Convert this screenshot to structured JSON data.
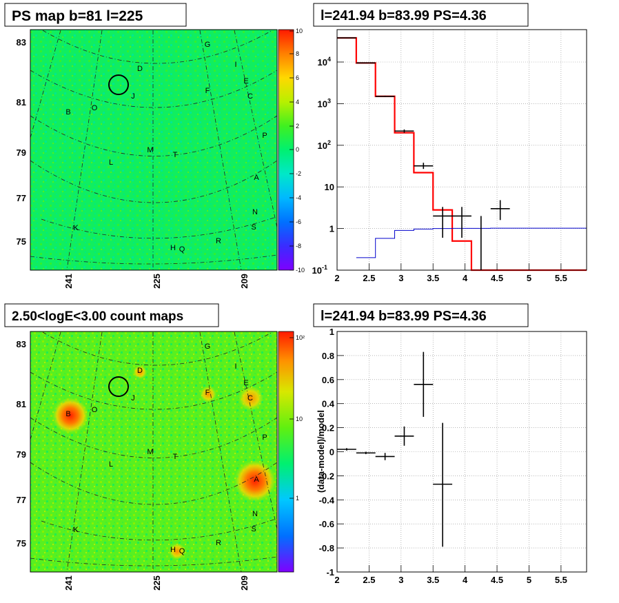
{
  "panels": {
    "ps_map": {
      "title": "PS map b=81 l=225",
      "y_ticks": [
        "83",
        "81",
        "79",
        "77",
        "75"
      ],
      "x_ticks": [
        "241",
        "225",
        "209"
      ],
      "colorbar_ticks": [
        "10",
        "8",
        "6",
        "4",
        "2",
        "0",
        "-2",
        "-4",
        "-6",
        "-8",
        "-10"
      ]
    },
    "count_map": {
      "title": "2.50<logE<3.00 count maps",
      "y_ticks": [
        "83",
        "81",
        "79",
        "77",
        "75"
      ],
      "x_ticks": [
        "241",
        "225",
        "209"
      ],
      "colorbar_ticks": [
        "10²",
        "10",
        "1"
      ]
    },
    "source_labels": [
      "G",
      "I",
      "D",
      "E",
      "J",
      "F",
      "C",
      "O",
      "B",
      "P",
      "M",
      "T",
      "L",
      "A",
      "N",
      "S",
      "K",
      "H",
      "Q",
      "R"
    ],
    "spectrum_title": "l=241.94 b=83.99 PS=4.36",
    "residual_title": "l=241.94 b=83.99 PS=4.36",
    "residual_ylabel": "(data-model)/model"
  },
  "colors": {
    "model_red": "#ff0000",
    "background_blue": "#0000cc",
    "data_black": "#000000"
  },
  "chart_data": [
    {
      "type": "line",
      "title": "l=241.94 b=83.99 PS=4.36",
      "xlim": [
        2,
        5.9
      ],
      "ylim": [
        0.1,
        60000
      ],
      "log_y": true,
      "grid": true,
      "x_ticks": [
        "2",
        "2.5",
        "3",
        "3.5",
        "4",
        "4.5",
        "5",
        "5.5"
      ],
      "y_ticks": [
        {
          "v": 10000,
          "base": "10",
          "exp": "4"
        },
        {
          "v": 1000,
          "base": "10",
          "exp": "3"
        },
        {
          "v": 100,
          "base": "10",
          "exp": "2"
        },
        {
          "v": 10,
          "base": "10",
          "exp": ""
        },
        {
          "v": 1,
          "base": "1",
          "exp": ""
        },
        {
          "v": 0.1,
          "base": "10",
          "exp": "-1"
        }
      ],
      "series": [
        {
          "role": "model",
          "color": "#ff0000",
          "edges": [
            2.0,
            2.3,
            2.6,
            2.9,
            3.2,
            3.5,
            3.8,
            4.1,
            4.4,
            5.9
          ],
          "values": [
            38000,
            9500,
            1500,
            200,
            22,
            2.8,
            0.5,
            0.1,
            0.1
          ]
        },
        {
          "role": "background",
          "color": "#0000cc",
          "edges": [
            2.3,
            2.6,
            2.9,
            3.2,
            3.5,
            3.8,
            4.1,
            4.4,
            5.9
          ],
          "values": [
            0.2,
            0.58,
            0.9,
            0.97,
            1.0,
            1.01,
            1.01,
            1.02
          ]
        },
        {
          "role": "data",
          "color": "#000000",
          "points": [
            {
              "x": 2.15,
              "y": 38000,
              "xe": 0.15,
              "ylo": 38000,
              "yhi": 38000
            },
            {
              "x": 2.45,
              "y": 9500,
              "xe": 0.15,
              "ylo": 9500,
              "yhi": 9500
            },
            {
              "x": 2.75,
              "y": 1500,
              "xe": 0.15,
              "ylo": 1450,
              "yhi": 1550
            },
            {
              "x": 3.05,
              "y": 220,
              "xe": 0.15,
              "ylo": 200,
              "yhi": 240
            },
            {
              "x": 3.35,
              "y": 32,
              "xe": 0.15,
              "ylo": 27,
              "yhi": 38
            },
            {
              "x": 3.65,
              "y": 2.0,
              "xe": 0.15,
              "ylo": 0.6,
              "yhi": 3.3
            },
            {
              "x": 3.95,
              "y": 2.0,
              "xe": 0.15,
              "ylo": 0.6,
              "yhi": 3.3
            },
            {
              "x": 4.25,
              "y": 1.0,
              "xe": 0.0,
              "ylo": 0.1,
              "yhi": 2.0
            },
            {
              "x": 4.55,
              "y": 3.0,
              "xe": 0.15,
              "ylo": 1.6,
              "yhi": 4.8
            }
          ]
        }
      ]
    },
    {
      "type": "scatter",
      "title": "l=241.94 b=83.99 PS=4.36",
      "ylabel": "(data-model)/model",
      "xlim": [
        2,
        5.9
      ],
      "ylim": [
        -1,
        1
      ],
      "grid": true,
      "x_ticks": [
        "2",
        "2.5",
        "3",
        "3.5",
        "4",
        "4.5",
        "5",
        "5.5"
      ],
      "y_ticks": [
        "1",
        "0.8",
        "0.6",
        "0.4",
        "0.2",
        "0",
        "-0.2",
        "-0.4",
        "-0.6",
        "-0.8",
        "-1"
      ],
      "points": [
        {
          "x": 2.15,
          "y": 0.02,
          "xe": 0.15,
          "ylo": 0.01,
          "yhi": 0.03
        },
        {
          "x": 2.45,
          "y": -0.01,
          "xe": 0.15,
          "ylo": -0.02,
          "yhi": 0.0
        },
        {
          "x": 2.75,
          "y": -0.04,
          "xe": 0.15,
          "ylo": -0.07,
          "yhi": -0.01
        },
        {
          "x": 3.05,
          "y": 0.13,
          "xe": 0.15,
          "ylo": 0.05,
          "yhi": 0.21
        },
        {
          "x": 3.35,
          "y": 0.56,
          "xe": 0.15,
          "ylo": 0.29,
          "yhi": 0.83
        },
        {
          "x": 3.65,
          "y": -0.27,
          "xe": 0.15,
          "ylo": -0.79,
          "yhi": 0.24
        }
      ]
    }
  ]
}
